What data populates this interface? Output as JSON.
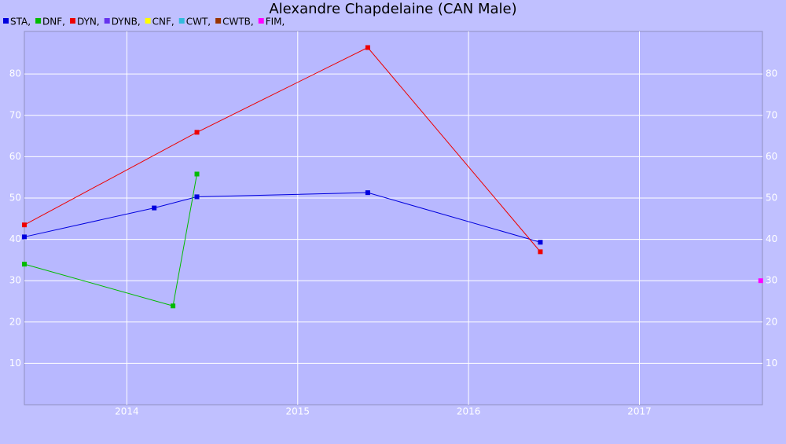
{
  "chart_data": {
    "type": "line",
    "title": "Alexandre Chapdelaine (CAN Male)",
    "xlim": [
      2013.4,
      2017.72
    ],
    "xticks": [
      2014,
      2015,
      2016,
      2017
    ],
    "ylim": [
      0,
      90.3
    ],
    "yticks": [
      10,
      20,
      30,
      40,
      50,
      60,
      70,
      80
    ],
    "grid": true,
    "series": [
      {
        "name": "STA,",
        "color": "#0000dd",
        "x": [
          2013.4,
          2014.16,
          2014.41,
          2015.41,
          2016.42
        ],
        "values": [
          40.6,
          47.6,
          50.3,
          51.3,
          39.3
        ]
      },
      {
        "name": "DNF,",
        "color": "#00bb00",
        "x": [
          2013.4,
          2014.27,
          2014.41
        ],
        "values": [
          34.0,
          23.9,
          55.8
        ]
      },
      {
        "name": "DYN,",
        "color": "#ee0000",
        "x": [
          2013.4,
          2014.41,
          2015.41,
          2016.42
        ],
        "values": [
          43.5,
          65.9,
          86.4,
          37.0
        ]
      },
      {
        "name": "DYNB,",
        "color": "#6633ee",
        "x": [],
        "values": []
      },
      {
        "name": "CNF,",
        "color": "#ffff00",
        "x": [],
        "values": []
      },
      {
        "name": "CWT,",
        "color": "#33bbdd",
        "x": [],
        "values": []
      },
      {
        "name": "CWTB,",
        "color": "#993300",
        "x": [],
        "values": []
      },
      {
        "name": "FIM,",
        "color": "#ff00ff",
        "x": [
          2017.71
        ],
        "values": [
          30.0
        ]
      }
    ]
  }
}
